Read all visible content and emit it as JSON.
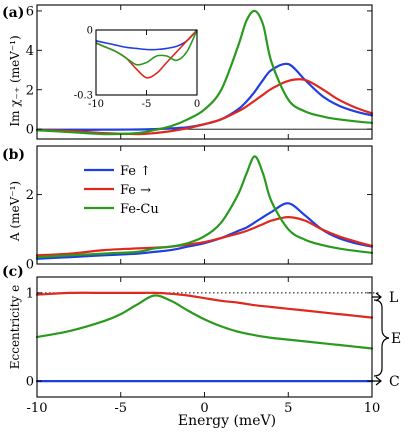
{
  "panel_labels": [
    "(a)",
    "(b)",
    "(c)"
  ],
  "axis_labels": {
    "a_ylabel": "Im χ₋₊ (meV⁻¹)",
    "b_ylabel": "A (meV⁻¹)",
    "c_ylabel": "Eccentricity e",
    "xlabel": "Energy (meV)"
  },
  "colors": {
    "fe_up": "#1f3fe0",
    "fe_right": "#e0281e",
    "fe_cu": "#2a9a1e"
  },
  "c_annotations": [
    "L",
    "E",
    "C"
  ],
  "chart_data": [
    {
      "panel": "a",
      "type": "line",
      "xlim": [
        -10,
        10
      ],
      "ylim": [
        -0.5,
        6.3
      ],
      "yticks": [
        "0",
        "2",
        "4",
        "6"
      ],
      "xticks": [],
      "x": [
        -10,
        -8,
        -6,
        -4,
        -3,
        -2,
        -1,
        0,
        1,
        2,
        2.5,
        3,
        3.5,
        4,
        5,
        6,
        7,
        8,
        9,
        10
      ],
      "series": [
        {
          "name": "Fe ↑",
          "color_key": "fe_up",
          "values": [
            -0.04,
            -0.04,
            -0.03,
            -0.02,
            0.0,
            0.04,
            0.1,
            0.25,
            0.5,
            1.0,
            1.4,
            1.9,
            2.5,
            3.0,
            3.3,
            2.5,
            1.7,
            1.2,
            0.9,
            0.7
          ]
        },
        {
          "name": "Fe →",
          "color_key": "fe_right",
          "values": [
            -0.05,
            -0.1,
            -0.2,
            -0.25,
            -0.2,
            -0.1,
            0.05,
            0.25,
            0.5,
            0.9,
            1.15,
            1.45,
            1.75,
            2.05,
            2.45,
            2.5,
            2.05,
            1.5,
            1.1,
            0.8
          ]
        },
        {
          "name": "Fe-Cu",
          "color_key": "fe_cu",
          "values": [
            -0.06,
            -0.15,
            -0.25,
            -0.2,
            -0.05,
            0.15,
            0.5,
            1.0,
            2.0,
            4.2,
            5.5,
            6.0,
            5.3,
            3.4,
            1.5,
            0.9,
            0.65,
            0.5,
            0.4,
            0.32
          ]
        }
      ]
    },
    {
      "panel": "a-inset",
      "type": "line",
      "xlim": [
        -10,
        0
      ],
      "ylim": [
        -0.3,
        0
      ],
      "yticks": [
        "0",
        "-0.3"
      ],
      "xticks": [
        "-10",
        "-5",
        "0"
      ],
      "x": [
        -10,
        -9,
        -8,
        -7,
        -6,
        -5,
        -4,
        -3,
        -2,
        -1,
        0
      ],
      "series": [
        {
          "name": "Fe ↑",
          "color_key": "fe_up",
          "values": [
            -0.05,
            -0.06,
            -0.07,
            -0.08,
            -0.085,
            -0.09,
            -0.09,
            -0.085,
            -0.075,
            -0.05,
            0.0
          ]
        },
        {
          "name": "Fe →",
          "color_key": "fe_right",
          "values": [
            -0.06,
            -0.08,
            -0.1,
            -0.13,
            -0.18,
            -0.22,
            -0.2,
            -0.15,
            -0.1,
            -0.05,
            0.0
          ]
        },
        {
          "name": "Fe-Cu",
          "color_key": "fe_cu",
          "values": [
            -0.06,
            -0.08,
            -0.1,
            -0.13,
            -0.16,
            -0.15,
            -0.12,
            -0.12,
            -0.14,
            -0.1,
            0.0
          ]
        }
      ]
    },
    {
      "panel": "b",
      "type": "line",
      "xlim": [
        -10,
        10
      ],
      "ylim": [
        0,
        3.4
      ],
      "yticks": [
        "0",
        "2"
      ],
      "xticks": [],
      "x": [
        -10,
        -8,
        -6,
        -4,
        -3,
        -2,
        -1,
        0,
        1,
        2,
        2.5,
        3,
        3.5,
        4,
        5,
        6,
        7,
        8,
        9,
        10
      ],
      "legend": {
        "position": "top-left",
        "entries": [
          "Fe ↑",
          "Fe →",
          "Fe-Cu"
        ]
      },
      "series": [
        {
          "name": "Fe ↑",
          "color_key": "fe_up",
          "values": [
            0.15,
            0.2,
            0.25,
            0.3,
            0.35,
            0.4,
            0.5,
            0.6,
            0.75,
            0.95,
            1.05,
            1.2,
            1.35,
            1.5,
            1.75,
            1.4,
            1.0,
            0.75,
            0.6,
            0.5
          ]
        },
        {
          "name": "Fe →",
          "color_key": "fe_right",
          "values": [
            0.25,
            0.3,
            0.4,
            0.45,
            0.47,
            0.5,
            0.56,
            0.63,
            0.75,
            0.88,
            0.95,
            1.05,
            1.15,
            1.25,
            1.35,
            1.25,
            1.0,
            0.8,
            0.65,
            0.52
          ]
        },
        {
          "name": "Fe-Cu",
          "color_key": "fe_cu",
          "values": [
            0.2,
            0.25,
            0.3,
            0.35,
            0.45,
            0.5,
            0.6,
            0.8,
            1.2,
            2.0,
            2.6,
            3.1,
            2.6,
            1.8,
            1.0,
            0.7,
            0.55,
            0.45,
            0.38,
            0.32
          ]
        }
      ]
    },
    {
      "panel": "c",
      "type": "line",
      "xlim": [
        -10,
        10
      ],
      "ylim": [
        -0.18,
        1.18
      ],
      "yticks": [
        "0",
        "1"
      ],
      "xticks": [
        "-10",
        "-5",
        "0",
        "5",
        "10"
      ],
      "x": [
        -10,
        -8,
        -6,
        -5,
        -4,
        -3,
        -2,
        -1,
        0,
        1,
        2,
        3,
        4,
        5,
        6,
        7,
        8,
        9,
        10
      ],
      "reference_lines": [
        1,
        0
      ],
      "series": [
        {
          "name": "Fe ↑",
          "color_key": "fe_up",
          "values": [
            0,
            0,
            0,
            0,
            0,
            0,
            0,
            0,
            0,
            0,
            0,
            0,
            0,
            0,
            0,
            0,
            0,
            0,
            0
          ]
        },
        {
          "name": "Fe →",
          "color_key": "fe_right",
          "values": [
            0.98,
            1.0,
            1.0,
            1.0,
            1.0,
            1.0,
            0.99,
            0.97,
            0.94,
            0.91,
            0.89,
            0.86,
            0.84,
            0.82,
            0.8,
            0.78,
            0.76,
            0.74,
            0.72
          ]
        },
        {
          "name": "Fe-Cu",
          "color_key": "fe_cu",
          "values": [
            0.5,
            0.57,
            0.68,
            0.76,
            0.87,
            0.97,
            0.91,
            0.8,
            0.7,
            0.62,
            0.56,
            0.52,
            0.49,
            0.47,
            0.45,
            0.43,
            0.41,
            0.39,
            0.37
          ]
        }
      ]
    }
  ]
}
